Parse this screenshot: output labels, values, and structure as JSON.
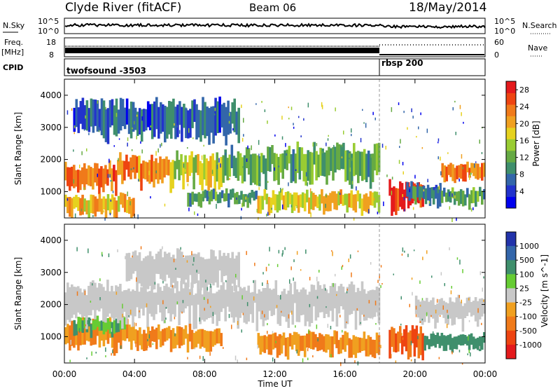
{
  "header": {
    "title": "Clyde River (fitACF)",
    "beam": "Beam 06",
    "date": "18/May/2014"
  },
  "top_panels": {
    "nsky_label": "N.Sky",
    "nsky_ticks": [
      "10^5",
      "10^0"
    ],
    "nsearch_label": "N.Search",
    "nsearch_ticks": [
      "10^5",
      "10^0"
    ],
    "freq_label": "Freq.",
    "freq_unit": "[MHz]",
    "freq_ticks": [
      "18",
      "8"
    ],
    "nave_label": "Nave",
    "nave_ticks": [
      "60",
      "0"
    ],
    "cpid_label": "CPID",
    "cpid_segments": [
      {
        "name": "twofsound -3503",
        "start_hour": 0,
        "end_hour": 18.0
      },
      {
        "name": "rbsp 200",
        "start_hour": 18.0,
        "end_hour": 24
      }
    ]
  },
  "chart_data": [
    {
      "type": "heatmap",
      "title": "",
      "xlabel": "Time UT",
      "ylabel": "Slant Range [km]",
      "x_ticks": [
        "00:00",
        "04:00",
        "08:00",
        "12:00",
        "16:00",
        "20:00",
        "00:00"
      ],
      "xlim_hours": [
        0,
        24
      ],
      "y_ticks": [
        1000,
        2000,
        3000,
        4000
      ],
      "ylim": [
        180,
        4500
      ],
      "colorbar": {
        "label": "Power [dB]",
        "ticks": [
          "4",
          "8",
          "12",
          "16",
          "20",
          "24",
          "28"
        ],
        "range": [
          0,
          30
        ],
        "colors": [
          "#0000ee",
          "#2233cc",
          "#3366aa",
          "#3f8f6c",
          "#66aa44",
          "#99cc33",
          "#e6d21f",
          "#f0a020",
          "#f07a1a",
          "#ee4411",
          "#e41a1c"
        ]
      },
      "bands": [
        {
          "start_hour": 0.0,
          "end_hour": 3.0,
          "range_low": 1050,
          "range_high": 1900,
          "value": 24
        },
        {
          "start_hour": 3.0,
          "end_hour": 6.0,
          "range_low": 1250,
          "range_high": 2100,
          "value": 22
        },
        {
          "start_hour": 6.0,
          "end_hour": 9.0,
          "range_low": 1150,
          "range_high": 2150,
          "value": 16
        },
        {
          "start_hour": 9.0,
          "end_hour": 13.0,
          "range_low": 1300,
          "range_high": 2300,
          "value": 12
        },
        {
          "start_hour": 13.0,
          "end_hour": 18.0,
          "range_low": 1300,
          "range_high": 2400,
          "value": 12
        },
        {
          "start_hour": 0.0,
          "end_hour": 4.0,
          "range_low": 250,
          "range_high": 900,
          "value": 20
        },
        {
          "start_hour": 7.0,
          "end_hour": 11.0,
          "range_low": 600,
          "range_high": 1050,
          "value": 10
        },
        {
          "start_hour": 11.0,
          "end_hour": 18.0,
          "range_low": 400,
          "range_high": 1000,
          "value": 18
        },
        {
          "start_hour": 18.5,
          "end_hour": 20.5,
          "range_low": 400,
          "range_high": 1300,
          "value": 28
        },
        {
          "start_hour": 19.5,
          "end_hour": 21.5,
          "range_low": 700,
          "range_high": 1300,
          "value": 8
        },
        {
          "start_hour": 21.5,
          "end_hour": 24.0,
          "range_low": 1350,
          "range_high": 1900,
          "value": 22
        },
        {
          "start_hour": 21.0,
          "end_hour": 24.0,
          "range_low": 600,
          "range_high": 1100,
          "value": 10
        },
        {
          "start_hour": 0.5,
          "end_hour": 10.0,
          "range_low": 2600,
          "range_high": 3800,
          "value": 6
        }
      ]
    },
    {
      "type": "heatmap",
      "title": "",
      "xlabel": "Time UT",
      "ylabel": "Slant Range [km]",
      "x_ticks": [
        "00:00",
        "04:00",
        "08:00",
        "12:00",
        "16:00",
        "20:00",
        "00:00"
      ],
      "xlim_hours": [
        0,
        24
      ],
      "y_ticks": [
        1000,
        2000,
        3000,
        4000
      ],
      "ylim": [
        180,
        4500
      ],
      "colorbar": {
        "label": "Velocity [m s^-1]",
        "ticks": [
          "1000",
          "500",
          "100",
          "25",
          "-25",
          "-100",
          "-500",
          "-1000"
        ],
        "colors": [
          "#2233aa",
          "#3366aa",
          "#3f8f6c",
          "#66cc33",
          "#c8c8c8",
          "#f0a020",
          "#f07a1a",
          "#ee4411",
          "#e41a1c"
        ]
      },
      "bands": [
        {
          "start_hour": 0.0,
          "end_hour": 4.0,
          "range_low": 600,
          "range_high": 1500,
          "value": -100
        },
        {
          "start_hour": 0.5,
          "end_hour": 3.5,
          "range_low": 1100,
          "range_high": 1600,
          "value": 100
        },
        {
          "start_hour": 0.0,
          "end_hour": 18.0,
          "range_low": 1400,
          "range_high": 2600,
          "value": 0
        },
        {
          "start_hour": 3.5,
          "end_hour": 10.0,
          "range_low": 2500,
          "range_high": 3600,
          "value": 0
        },
        {
          "start_hour": 4.0,
          "end_hour": 9.0,
          "range_low": 600,
          "range_high": 1300,
          "value": -100
        },
        {
          "start_hour": 11.0,
          "end_hour": 18.0,
          "range_low": 400,
          "range_high": 1100,
          "value": -100
        },
        {
          "start_hour": 18.5,
          "end_hour": 20.5,
          "range_low": 400,
          "range_high": 1300,
          "value": -500
        },
        {
          "start_hour": 20.5,
          "end_hour": 24.0,
          "range_low": 600,
          "range_high": 1100,
          "value": 200
        },
        {
          "start_hour": 20.0,
          "end_hour": 24.0,
          "range_low": 1400,
          "range_high": 2200,
          "value": 0
        }
      ]
    }
  ]
}
